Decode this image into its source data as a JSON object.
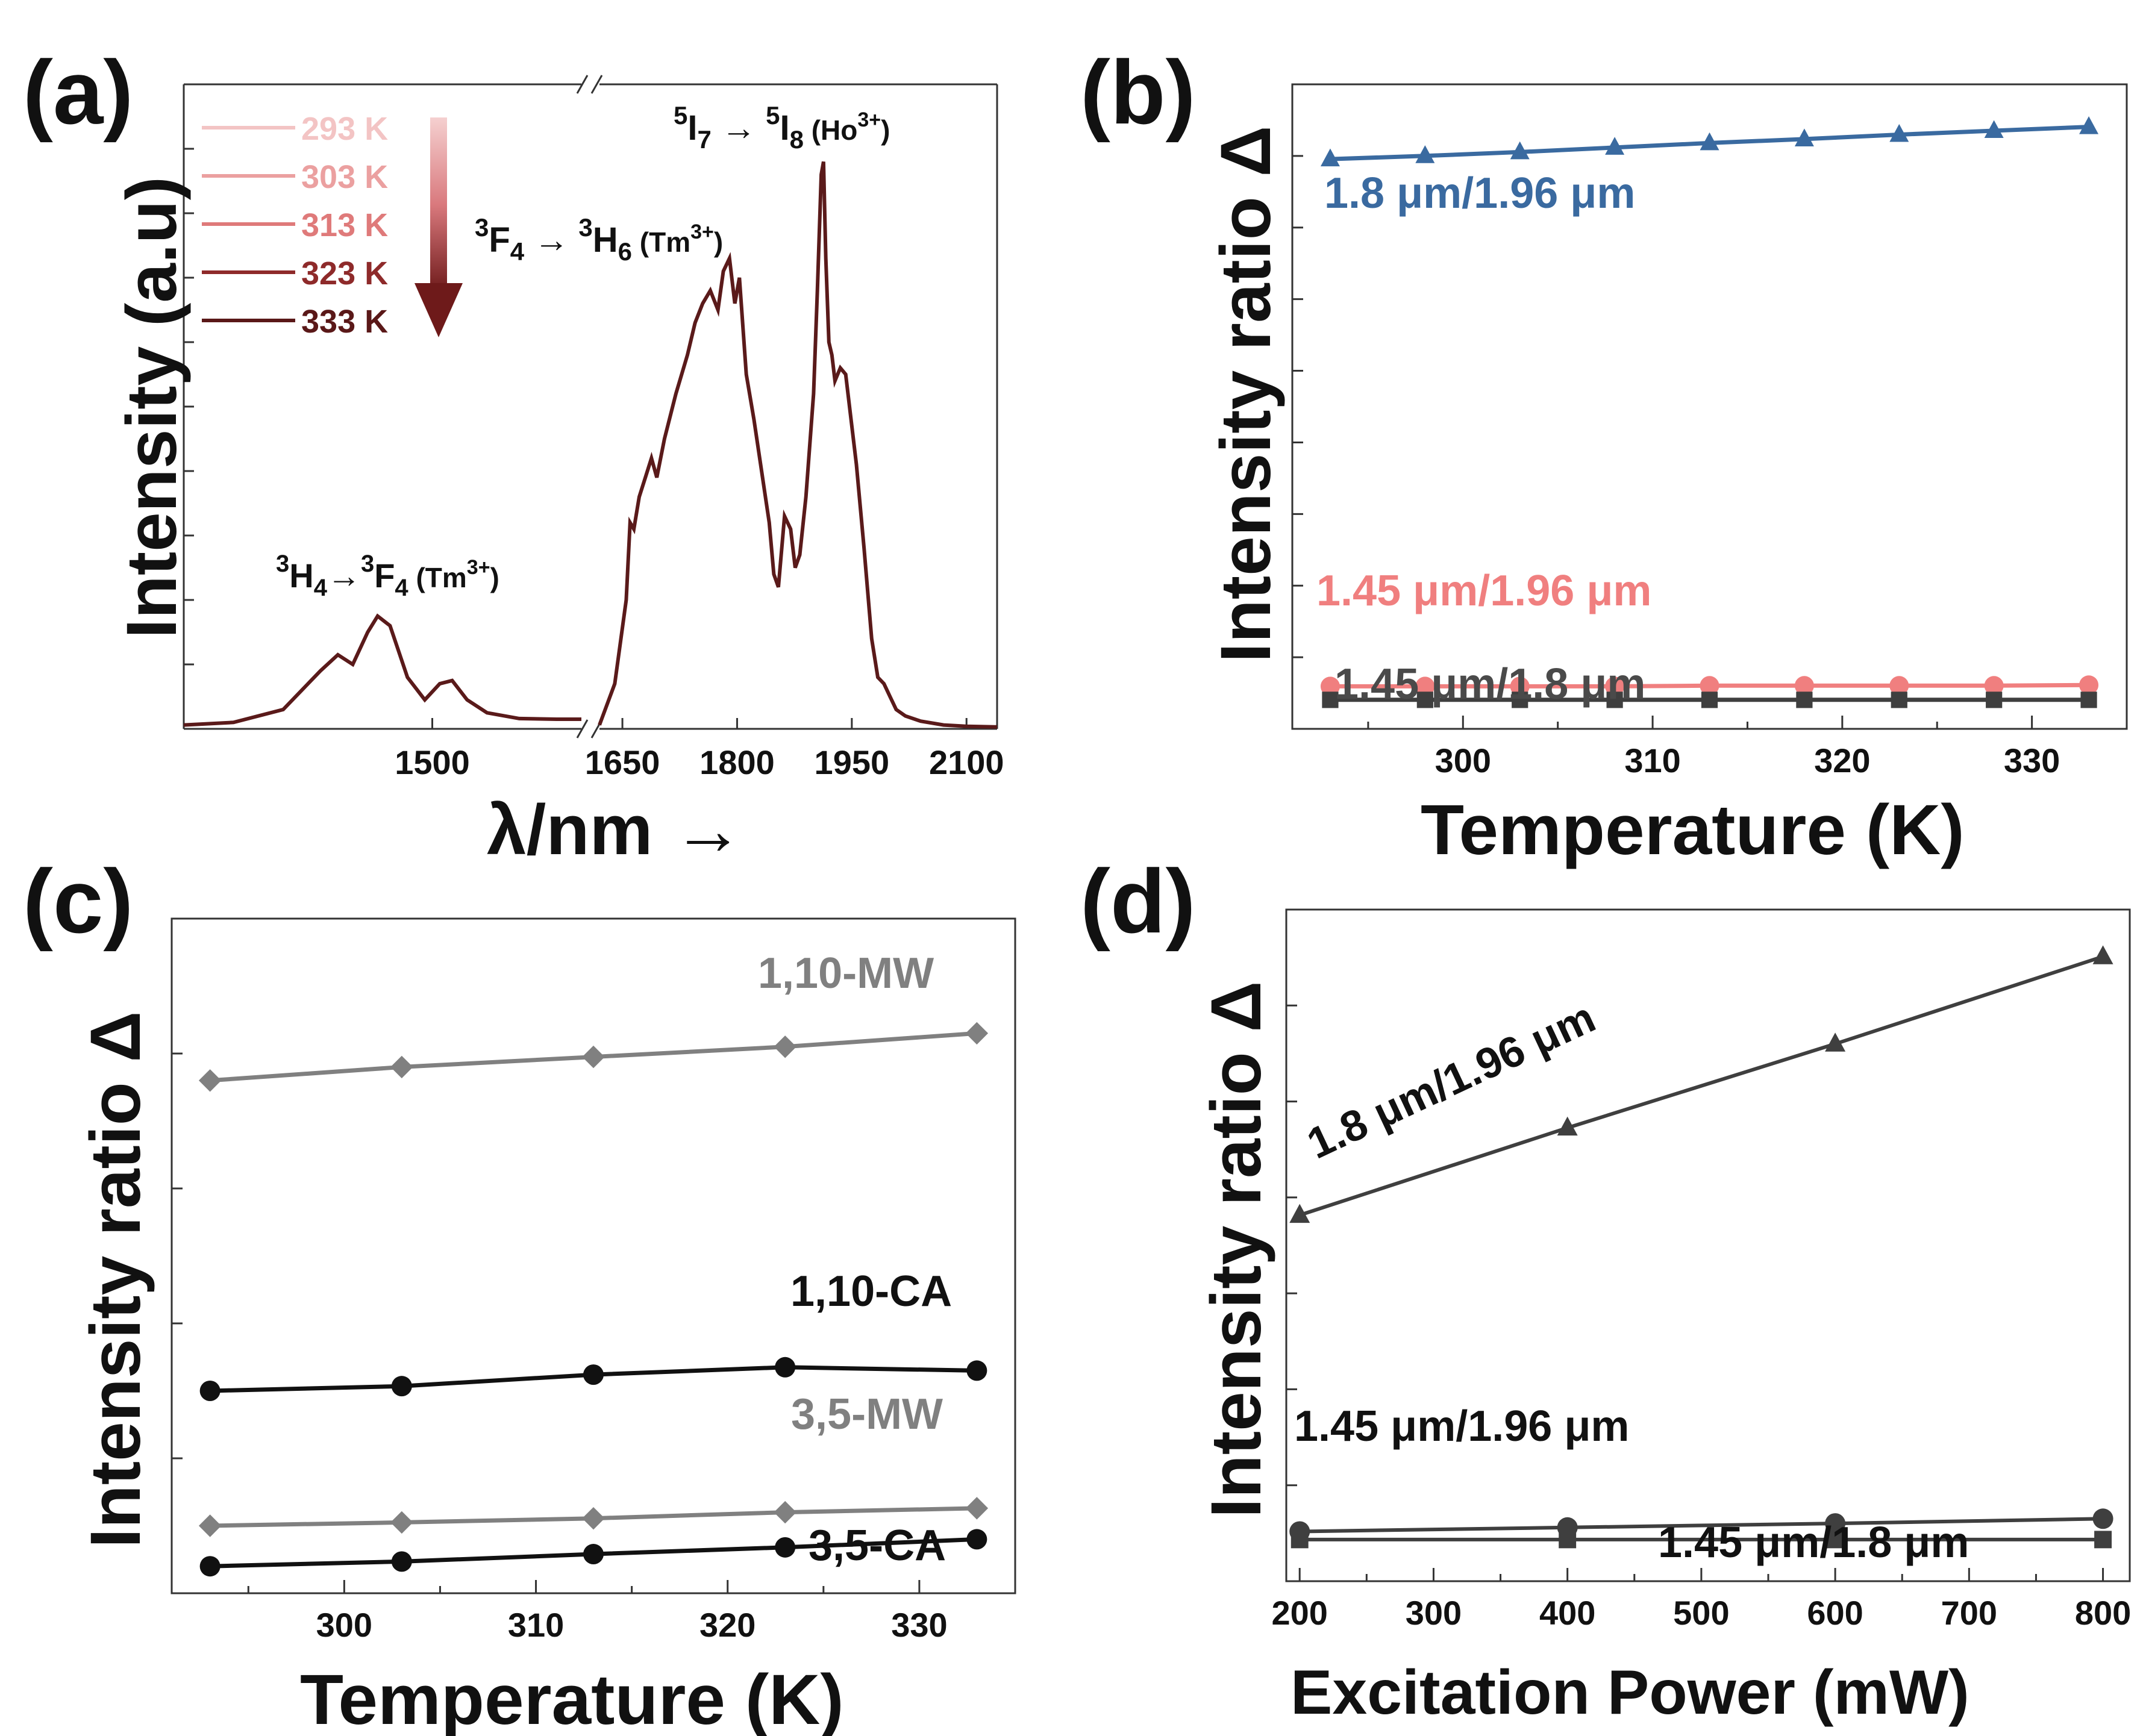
{
  "colors": {
    "blue": "#3a6aa0",
    "pink": "#f07f7f",
    "darkgray": "#3f3f3f",
    "lightgray": "#808080",
    "black": "#111111",
    "spectrum": "#5a1a1a",
    "legend": [
      "#f3c4c4",
      "#eba0a0",
      "#df7a7a",
      "#8e2a2a",
      "#5a1818"
    ]
  },
  "chart_data": [
    {
      "panel": "(a)",
      "type": "line",
      "xlabel": "λ/nm →",
      "ylabel": "Intensity (a.u)",
      "xticks_left": [
        "1500"
      ],
      "xticks_right": [
        "1650",
        "1800",
        "1950",
        "2100"
      ],
      "x_break": true,
      "xlim_left": [
        1400,
        1560
      ],
      "xlim_right": [
        1620,
        2140
      ],
      "ylim": [
        0,
        1
      ],
      "legend": {
        "entries": [
          "293 K",
          "303 K",
          "313 K",
          "323 K",
          "333 K"
        ],
        "placement": "top-left"
      },
      "annotations": {
        "tm_1450": {
          "pre": "3",
          "a": "H",
          "asub": "4",
          "arrow": "→",
          "pre2": "3",
          "b": "F",
          "bsub": "4",
          "ion": " (Tm",
          "sup": "3+",
          "close": ")"
        },
        "tm_1800": {
          "pre": "3",
          "a": "F",
          "asub": "4",
          "arrow": " → ",
          "pre2": "3",
          "b": "H",
          "bsub": "6",
          "ion": " (Tm",
          "sup": "3+",
          "close": ")"
        },
        "ho_1960": {
          "pre": "5",
          "a": "I",
          "asub": "7",
          "arrow": " → ",
          "pre2": "5",
          "b": "I",
          "bsub": "8",
          "ion": " (Ho",
          "sup": "3+",
          "close": ")"
        }
      },
      "spectrum_segment1": [
        [
          1400,
          0.006
        ],
        [
          1420,
          0.01
        ],
        [
          1440,
          0.03
        ],
        [
          1455,
          0.09
        ],
        [
          1462,
          0.115
        ],
        [
          1468,
          0.1
        ],
        [
          1474,
          0.15
        ],
        [
          1478,
          0.175
        ],
        [
          1483,
          0.16
        ],
        [
          1490,
          0.08
        ],
        [
          1497,
          0.045
        ],
        [
          1503,
          0.07
        ],
        [
          1508,
          0.075
        ],
        [
          1514,
          0.045
        ],
        [
          1522,
          0.025
        ],
        [
          1535,
          0.016
        ],
        [
          1550,
          0.015
        ],
        [
          1560,
          0.015
        ]
      ],
      "spectrum_segment2": [
        [
          1620,
          0.006
        ],
        [
          1640,
          0.07
        ],
        [
          1655,
          0.2
        ],
        [
          1660,
          0.32
        ],
        [
          1665,
          0.31
        ],
        [
          1672,
          0.36
        ],
        [
          1680,
          0.39
        ],
        [
          1688,
          0.42
        ],
        [
          1695,
          0.39
        ],
        [
          1705,
          0.45
        ],
        [
          1720,
          0.52
        ],
        [
          1735,
          0.58
        ],
        [
          1745,
          0.63
        ],
        [
          1755,
          0.66
        ],
        [
          1765,
          0.68
        ],
        [
          1775,
          0.65
        ],
        [
          1782,
          0.71
        ],
        [
          1790,
          0.73
        ],
        [
          1797,
          0.66
        ],
        [
          1803,
          0.7
        ],
        [
          1812,
          0.55
        ],
        [
          1822,
          0.48
        ],
        [
          1832,
          0.4
        ],
        [
          1842,
          0.32
        ],
        [
          1848,
          0.24
        ],
        [
          1854,
          0.22
        ],
        [
          1862,
          0.33
        ],
        [
          1870,
          0.31
        ],
        [
          1876,
          0.25
        ],
        [
          1882,
          0.27
        ],
        [
          1890,
          0.36
        ],
        [
          1900,
          0.52
        ],
        [
          1905,
          0.68
        ],
        [
          1910,
          0.86
        ],
        [
          1913,
          0.88
        ],
        [
          1916,
          0.73
        ],
        [
          1920,
          0.6
        ],
        [
          1924,
          0.58
        ],
        [
          1928,
          0.54
        ],
        [
          1935,
          0.56
        ],
        [
          1942,
          0.55
        ],
        [
          1948,
          0.49
        ],
        [
          1956,
          0.41
        ],
        [
          1966,
          0.28
        ],
        [
          1976,
          0.14
        ],
        [
          1984,
          0.08
        ],
        [
          1992,
          0.07
        ],
        [
          2000,
          0.05
        ],
        [
          2008,
          0.03
        ],
        [
          2020,
          0.02
        ],
        [
          2040,
          0.012
        ],
        [
          2070,
          0.006
        ],
        [
          2100,
          0.004
        ],
        [
          2140,
          0.003
        ]
      ]
    },
    {
      "panel": "(b)",
      "type": "line",
      "xlabel": "Temperature (K)",
      "ylabel": "Intensity ratio Δ",
      "xlim": [
        291,
        335
      ],
      "ylim": [
        0,
        1
      ],
      "xticks": [
        300,
        310,
        320,
        330
      ],
      "x": [
        293,
        298,
        303,
        308,
        313,
        318,
        323,
        328,
        333
      ],
      "series": [
        {
          "name": "1.8 μm/1.96 μm",
          "color": "#3a6aa0",
          "marker": "triangle",
          "values": [
            0.884,
            0.889,
            0.895,
            0.902,
            0.909,
            0.915,
            0.922,
            0.928,
            0.934
          ]
        },
        {
          "name": "1.45 μm/1.96 μm",
          "color": "#f07f7f",
          "marker": "circle",
          "values": [
            0.066,
            0.066,
            0.066,
            0.066,
            0.067,
            0.067,
            0.067,
            0.067,
            0.068
          ]
        },
        {
          "name": "1.45 μm/1.8 μm",
          "color": "#3f3f3f",
          "marker": "square",
          "values": [
            0.045,
            0.045,
            0.045,
            0.045,
            0.045,
            0.045,
            0.045,
            0.045,
            0.045
          ]
        }
      ]
    },
    {
      "panel": "(c)",
      "type": "line",
      "xlabel": "Temperature (K)",
      "ylabel": "Intensity ratio Δ",
      "xlim": [
        291,
        335
      ],
      "ylim": [
        0,
        1
      ],
      "xticks": [
        300,
        310,
        320,
        330
      ],
      "x": [
        293,
        303,
        313,
        323,
        333
      ],
      "series": [
        {
          "name": "1,10-MW",
          "color": "#808080",
          "marker": "diamond",
          "values": [
            0.76,
            0.78,
            0.795,
            0.81,
            0.83
          ]
        },
        {
          "name": "1,10-CA",
          "color": "#111111",
          "marker": "circle",
          "values": [
            0.3,
            0.307,
            0.324,
            0.335,
            0.33
          ]
        },
        {
          "name": "3,5-MW",
          "color": "#808080",
          "marker": "diamond",
          "values": [
            0.1,
            0.105,
            0.111,
            0.12,
            0.126
          ]
        },
        {
          "name": "3,5-CA",
          "color": "#111111",
          "marker": "circle",
          "values": [
            0.04,
            0.047,
            0.058,
            0.068,
            0.08
          ]
        }
      ]
    },
    {
      "panel": "(d)",
      "type": "line",
      "xlabel": "Excitation Power (mW)",
      "ylabel": "Intensity ratio Δ",
      "xlim": [
        190,
        820
      ],
      "ylim": [
        0,
        1
      ],
      "xticks": [
        200,
        300,
        400,
        500,
        600,
        700,
        800
      ],
      "x": [
        200,
        400,
        600,
        800
      ],
      "series": [
        {
          "name": "1.8 μm/1.96 μm",
          "color": "#3f3f3f",
          "marker": "triangle",
          "values": [
            0.545,
            0.675,
            0.8,
            0.93
          ]
        },
        {
          "name": "1.45 μm/1.96 μm",
          "color": "#3f3f3f",
          "marker": "circle",
          "values": [
            0.074,
            0.08,
            0.086,
            0.093
          ]
        },
        {
          "name": "1.45 μm/1.8 μm",
          "color": "#3f3f3f",
          "marker": "square",
          "values": [
            0.062,
            0.062,
            0.062,
            0.062
          ]
        }
      ]
    }
  ]
}
